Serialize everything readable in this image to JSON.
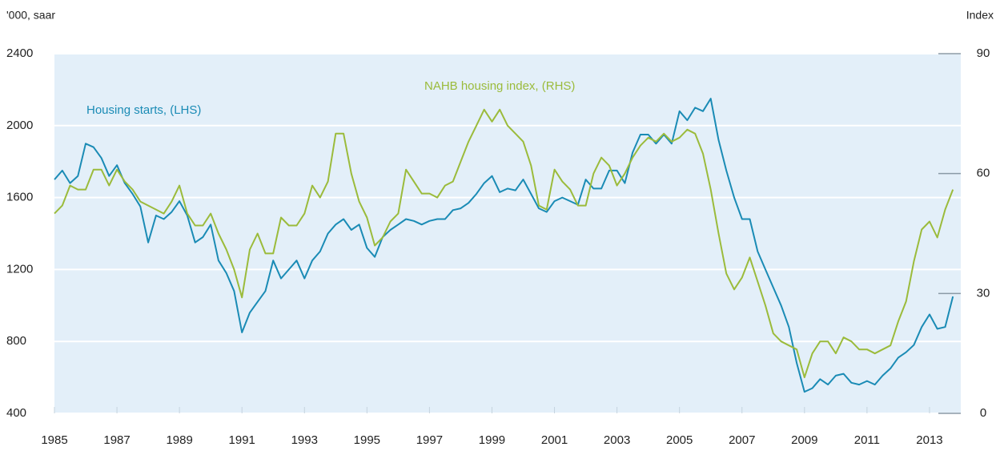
{
  "chart_data": {
    "type": "line",
    "y_axis_label": "'000, saar",
    "y2_axis_label": "Index",
    "x": [
      1985,
      1985.25,
      1985.5,
      1985.75,
      1986,
      1986.25,
      1986.5,
      1986.75,
      1987,
      1987.25,
      1987.5,
      1987.75,
      1988,
      1988.25,
      1988.5,
      1988.75,
      1989,
      1989.25,
      1989.5,
      1989.75,
      1990,
      1990.25,
      1990.5,
      1990.75,
      1991,
      1991.25,
      1991.5,
      1991.75,
      1992,
      1992.25,
      1992.5,
      1992.75,
      1993,
      1993.25,
      1993.5,
      1993.75,
      1994,
      1994.25,
      1994.5,
      1994.75,
      1995,
      1995.25,
      1995.5,
      1995.75,
      1996,
      1996.25,
      1996.5,
      1996.75,
      1997,
      1997.25,
      1997.5,
      1997.75,
      1998,
      1998.25,
      1998.5,
      1998.75,
      1999,
      1999.25,
      1999.5,
      1999.75,
      2000,
      2000.25,
      2000.5,
      2000.75,
      2001,
      2001.25,
      2001.5,
      2001.75,
      2002,
      2002.25,
      2002.5,
      2002.75,
      2003,
      2003.25,
      2003.5,
      2003.75,
      2004,
      2004.25,
      2004.5,
      2004.75,
      2005,
      2005.25,
      2005.5,
      2005.75,
      2006,
      2006.25,
      2006.5,
      2006.75,
      2007,
      2007.25,
      2007.5,
      2007.75,
      2008,
      2008.25,
      2008.5,
      2008.75,
      2009,
      2009.25,
      2009.5,
      2009.75,
      2010,
      2010.25,
      2010.5,
      2010.75,
      2011,
      2011.25,
      2011.5,
      2011.75,
      2012,
      2012.25,
      2012.5,
      2012.75,
      2013,
      2013.25,
      2013.5,
      2013.75
    ],
    "series": [
      {
        "name": "Housing starts, (LHS)",
        "color": "#1a8bb5",
        "axis": "y",
        "values": [
          1700,
          1750,
          1680,
          1720,
          1900,
          1880,
          1820,
          1720,
          1780,
          1680,
          1620,
          1550,
          1350,
          1500,
          1480,
          1520,
          1580,
          1500,
          1350,
          1380,
          1450,
          1250,
          1180,
          1080,
          850,
          960,
          1020,
          1080,
          1250,
          1150,
          1200,
          1250,
          1150,
          1250,
          1300,
          1400,
          1450,
          1480,
          1420,
          1450,
          1320,
          1270,
          1380,
          1420,
          1450,
          1480,
          1470,
          1450,
          1470,
          1480,
          1480,
          1530,
          1540,
          1570,
          1620,
          1680,
          1720,
          1630,
          1650,
          1640,
          1700,
          1620,
          1540,
          1520,
          1580,
          1600,
          1580,
          1560,
          1700,
          1650,
          1650,
          1750,
          1750,
          1680,
          1850,
          1950,
          1950,
          1900,
          1950,
          1900,
          2080,
          2030,
          2100,
          2080,
          2150,
          1920,
          1750,
          1600,
          1480,
          1480,
          1300,
          1200,
          1100,
          1000,
          880,
          680,
          520,
          540,
          590,
          560,
          610,
          620,
          570,
          560,
          580,
          560,
          610,
          650,
          710,
          740,
          780,
          880,
          950,
          870,
          880,
          1050
        ]
      },
      {
        "name": "NAHB housing index, (RHS)",
        "color": "#9bbb3b",
        "axis": "y2",
        "values": [
          50,
          52,
          57,
          56,
          56,
          61,
          61,
          57,
          61,
          58,
          56,
          53,
          52,
          51,
          50,
          53,
          57,
          50,
          47,
          47,
          50,
          45,
          41,
          36,
          29,
          41,
          45,
          40,
          40,
          49,
          47,
          47,
          50,
          57,
          54,
          58,
          70,
          70,
          60,
          53,
          49,
          42,
          44,
          48,
          50,
          61,
          58,
          55,
          55,
          54,
          57,
          58,
          63,
          68,
          72,
          76,
          73,
          76,
          72,
          70,
          68,
          62,
          52,
          51,
          61,
          58,
          56,
          52,
          52,
          60,
          64,
          62,
          57,
          60,
          64,
          67,
          69,
          68,
          70,
          68,
          69,
          71,
          70,
          65,
          56,
          45,
          35,
          31,
          34,
          39,
          33,
          27,
          20,
          18,
          17,
          16,
          9,
          15,
          18,
          18,
          15,
          19,
          18,
          16,
          16,
          15,
          16,
          17,
          23,
          28,
          38,
          46,
          48,
          44,
          51,
          56
        ]
      }
    ],
    "xlim": [
      1985,
      2014
    ],
    "xticks": [
      1985,
      1987,
      1989,
      1991,
      1993,
      1995,
      1997,
      1999,
      2001,
      2003,
      2005,
      2007,
      2009,
      2011,
      2013
    ],
    "ylim": [
      400,
      2400
    ],
    "yticks": [
      400,
      800,
      1200,
      1600,
      2000,
      2400
    ],
    "y2lim": [
      0,
      90
    ],
    "y2ticks": [
      0,
      30,
      60,
      90
    ],
    "grid": true
  }
}
